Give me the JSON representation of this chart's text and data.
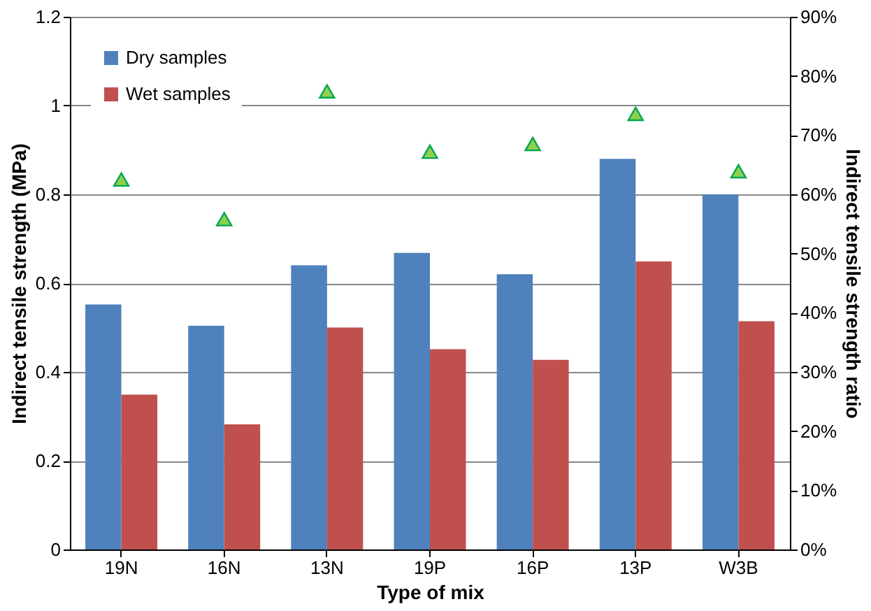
{
  "chart_data": {
    "type": "bar",
    "xlabel": "Type of mix",
    "ylabel": "Indirect tensile strength (MPa)",
    "y2label": "Indirect tensile strength  ratio",
    "categories": [
      "19N",
      "16N",
      "13N",
      "19P",
      "16P",
      "13P",
      "W3B"
    ],
    "series": [
      {
        "name": "Dry samples",
        "color": "#4f81bd",
        "values": [
          0.552,
          0.504,
          0.64,
          0.668,
          0.62,
          0.88,
          0.8
        ]
      },
      {
        "name": "Wet samples",
        "color": "#c0504d",
        "values": [
          0.349,
          0.282,
          0.5,
          0.451,
          0.427,
          0.649,
          0.514
        ]
      },
      {
        "type": "scatter",
        "axis": "y2",
        "marker": "triangle",
        "color": "#8fd14f",
        "values": [
          62.5,
          55.8,
          77.4,
          67.2,
          68.5,
          73.6,
          63.9
        ]
      }
    ],
    "ylim": [
      0,
      1.2
    ],
    "yticks": [
      0,
      0.2,
      0.4,
      0.6,
      0.8,
      1,
      1.2
    ],
    "y2lim": [
      0,
      90
    ],
    "y2ticks": [
      {
        "value": 0,
        "label": "0%"
      },
      {
        "value": 10,
        "label": "10%"
      },
      {
        "value": 20,
        "label": "20%"
      },
      {
        "value": 30,
        "label": "30%"
      },
      {
        "value": 40,
        "label": "40%"
      },
      {
        "value": 50,
        "label": "50%"
      },
      {
        "value": 60,
        "label": "60%"
      },
      {
        "value": 70,
        "label": "70%"
      },
      {
        "value": 80,
        "label": "80%"
      },
      {
        "value": 90,
        "label": "90%"
      }
    ],
    "grid": "y",
    "legend": "top left"
  }
}
